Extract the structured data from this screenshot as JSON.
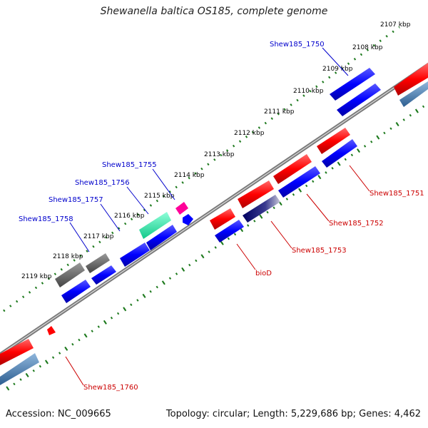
{
  "title": "Shewanella baltica OS185, complete genome",
  "footer": {
    "accession": "Accession: NC_009665",
    "topology": "Topology: circular; Length: 5,229,686 bp; Genes: 4,462"
  },
  "colors": {
    "forward_cds": "#ff0000",
    "reverse_cds": "#0000ff",
    "blue_label": "#0000cc",
    "red_label": "#cc0000",
    "tick_green": "#1e7a1e",
    "backbone": "#8a8a8a",
    "grey_feature": "#5a5a5a",
    "teal_feature": "#1de9a6",
    "magenta_feature": "#ff0099",
    "steel_feature": "#4f86b8",
    "navy_feature": "#0a0a5a"
  },
  "scale_labels": [
    "2107 kbp",
    "2108 kbp",
    "2109 kbp",
    "2110 kbp",
    "2111 kbp",
    "2112 kbp",
    "2113 kbp",
    "2114 kbp",
    "2115 kbp",
    "2116 kbp",
    "2117 kbp",
    "2118 kbp",
    "2119 kbp"
  ],
  "gene_labels_blue": [
    "Shew185_1750",
    "Shew185_1755",
    "Shew185_1756",
    "Shew185_1757",
    "Shew185_1758"
  ],
  "gene_labels_red": [
    "Shew185_1751",
    "Shew185_1752",
    "Shew185_1753",
    "bioD",
    "Shew185_1760"
  ]
}
